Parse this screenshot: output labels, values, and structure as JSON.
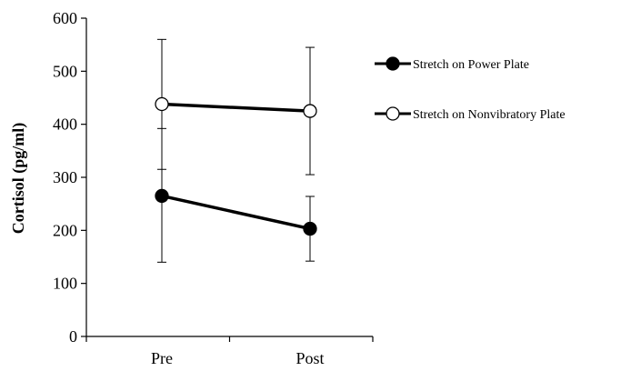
{
  "chart_data": {
    "type": "line",
    "title": "",
    "xlabel": "",
    "ylabel": "Cortisol (pg/ml)",
    "categories": [
      "Pre",
      "Post"
    ],
    "ylim": [
      0,
      600
    ],
    "yticks": [
      0,
      100,
      200,
      300,
      400,
      500,
      600
    ],
    "grid": false,
    "legend_position": "right",
    "series": [
      {
        "name": "Stretch on Power Plate",
        "values": [
          265,
          203
        ],
        "error_low": [
          140,
          142
        ],
        "error_high": [
          392,
          264
        ],
        "marker": "filled-circle",
        "color": "#000000"
      },
      {
        "name": "Stretch on Nonvibratory Plate",
        "values": [
          438,
          425
        ],
        "error_low": [
          315,
          305
        ],
        "error_high": [
          560,
          545
        ],
        "marker": "open-circle",
        "color": "#000000"
      }
    ]
  }
}
